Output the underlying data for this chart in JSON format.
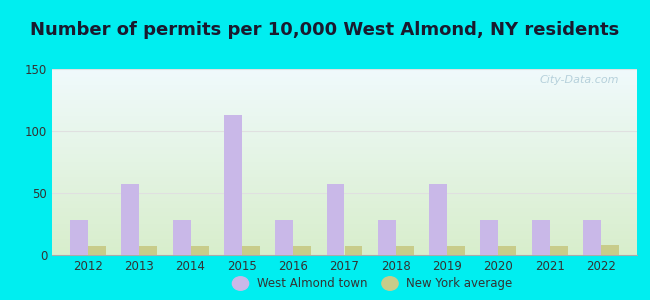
{
  "title": "Number of permits per 10,000 West Almond, NY residents",
  "years": [
    2012,
    2013,
    2014,
    2015,
    2016,
    2017,
    2018,
    2019,
    2020,
    2021,
    2022
  ],
  "west_almond": [
    28,
    57,
    28,
    113,
    28,
    57,
    28,
    57,
    28,
    28,
    28
  ],
  "ny_average": [
    7,
    7,
    7,
    7,
    7,
    7,
    7,
    7,
    7,
    7,
    8
  ],
  "bar_color_almond": "#c9b8e8",
  "bar_color_ny": "#c8cc8a",
  "ylim": [
    0,
    150
  ],
  "yticks": [
    0,
    50,
    100,
    150
  ],
  "bg_top": "#f0fafc",
  "bg_bottom": "#d8eecc",
  "outer_bg": "#00eef0",
  "title_fontsize": 13,
  "title_color": "#1a1a2e",
  "legend_label_almond": "West Almond town",
  "legend_label_ny": "New York average",
  "bar_width": 0.35,
  "watermark": "City-Data.com",
  "watermark_color": "#b0ccd8",
  "tick_color": "#333333",
  "grid_color": "#e0e0e0"
}
